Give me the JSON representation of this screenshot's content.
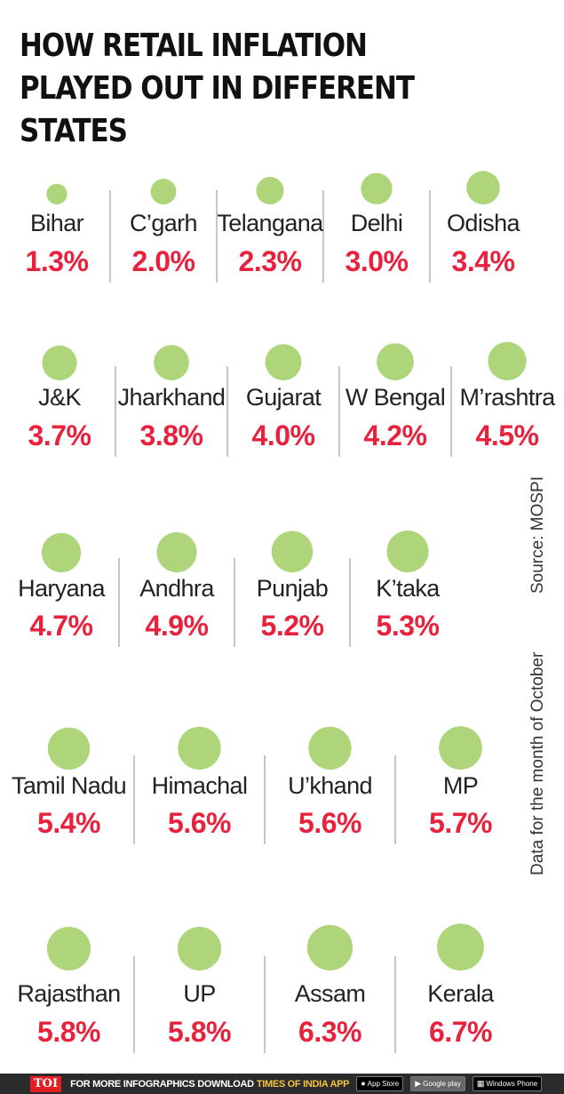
{
  "chart_data": {
    "type": "bubble",
    "title": "HOW RETAIL INFLATION PLAYED OUT IN DIFFERENT STATES",
    "unit": "%",
    "bubble_color": "#aed57a",
    "value_color": "#e8213d",
    "divider_color": "#b3b3b3",
    "rows": [
      [
        {
          "state": "Bihar",
          "value": 1.3,
          "label": "1.3%"
        },
        {
          "state": "C’garh",
          "value": 2.0,
          "label": "2.0%"
        },
        {
          "state": "Telangana",
          "value": 2.3,
          "label": "2.3%"
        },
        {
          "state": "Delhi",
          "value": 3.0,
          "label": "3.0%"
        },
        {
          "state": "Odisha",
          "value": 3.4,
          "label": "3.4%"
        }
      ],
      [
        {
          "state": "J&K",
          "value": 3.7,
          "label": "3.7%"
        },
        {
          "state": "Jharkhand",
          "value": 3.8,
          "label": "3.8%"
        },
        {
          "state": "Gujarat",
          "value": 4.0,
          "label": "4.0%"
        },
        {
          "state": "W Bengal",
          "value": 4.2,
          "label": "4.2%"
        },
        {
          "state": "M’rashtra",
          "value": 4.5,
          "label": "4.5%"
        }
      ],
      [
        {
          "state": "Haryana",
          "value": 4.7,
          "label": "4.7%"
        },
        {
          "state": "Andhra",
          "value": 4.9,
          "label": "4.9%"
        },
        {
          "state": "Punjab",
          "value": 5.2,
          "label": "5.2%"
        },
        {
          "state": "K’taka",
          "value": 5.3,
          "label": "5.3%"
        }
      ],
      [
        {
          "state": "Tamil Nadu",
          "value": 5.4,
          "label": "5.4%"
        },
        {
          "state": "Himachal",
          "value": 5.6,
          "label": "5.6%"
        },
        {
          "state": "U’khand",
          "value": 5.6,
          "label": "5.6%"
        },
        {
          "state": "MP",
          "value": 5.7,
          "label": "5.7%"
        }
      ],
      [
        {
          "state": "Rajasthan",
          "value": 5.8,
          "label": "5.8%"
        },
        {
          "state": "UP",
          "value": 5.8,
          "label": "5.8%"
        },
        {
          "state": "Assam",
          "value": 6.3,
          "label": "6.3%"
        },
        {
          "state": "Kerala",
          "value": 6.7,
          "label": "6.7%"
        }
      ]
    ],
    "source": "Source: MOSPI",
    "note": "Data for the month of October"
  },
  "footer": {
    "logo": "TOI",
    "text": "FOR MORE  INFOGRAPHICS DOWNLOAD",
    "app_name": "TIMES OF INDIA APP",
    "badges": {
      "app_store": "App Store",
      "google_play": "Google play",
      "windows_phone": "Windows Phone"
    }
  }
}
